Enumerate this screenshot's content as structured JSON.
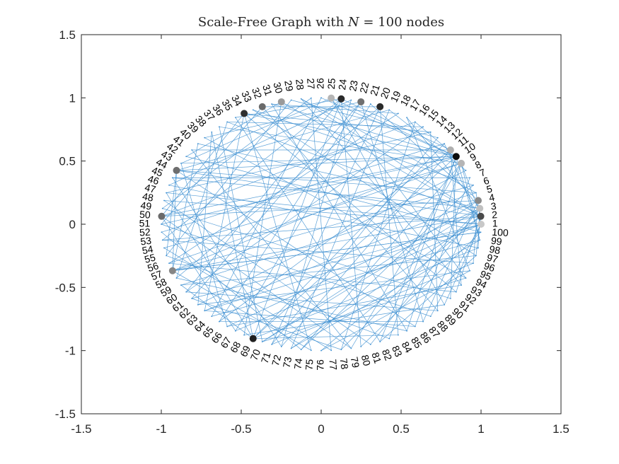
{
  "chart_data": {
    "type": "network-graph",
    "title": "Scale-Free Graph with N = 100 nodes",
    "title_parts": {
      "prefix": "Scale-Free Graph with ",
      "var": "N",
      "rest": " = 100 nodes"
    },
    "xlabel": "",
    "ylabel": "",
    "xlim": [
      -1.5,
      1.5
    ],
    "ylim": [
      -1.5,
      1.5
    ],
    "xticks": [
      -1.5,
      -1,
      -0.5,
      0,
      0.5,
      1,
      1.5
    ],
    "yticks": [
      -1.5,
      -1,
      -0.5,
      0,
      0.5,
      1,
      1.5
    ],
    "xtick_labels": [
      "-1.5",
      "-1",
      "-0.5",
      "0",
      "0.5",
      "1",
      "1.5"
    ],
    "ytick_labels": [
      "-1.5",
      "-1",
      "-0.5",
      "0",
      "0.5",
      "1",
      "1.5"
    ],
    "grid": false,
    "layout": "circle",
    "node_count": 100,
    "edge_color": "#3d8fd1",
    "node_labels": [
      "1",
      "2",
      "3",
      "4",
      "5",
      "6",
      "7",
      "8",
      "9",
      "10",
      "11",
      "12",
      "13",
      "14",
      "15",
      "16",
      "17",
      "18",
      "19",
      "20",
      "21",
      "22",
      "23",
      "24",
      "25",
      "26",
      "27",
      "28",
      "29",
      "30",
      "31",
      "32",
      "33",
      "34",
      "35",
      "36",
      "37",
      "38",
      "39",
      "40",
      "41",
      "42",
      "43",
      "44",
      "45",
      "46",
      "47",
      "48",
      "49",
      "50",
      "51",
      "52",
      "53",
      "54",
      "55",
      "56",
      "57",
      "58",
      "59",
      "60",
      "61",
      "62",
      "63",
      "64",
      "65",
      "66",
      "67",
      "68",
      "69",
      "70",
      "71",
      "72",
      "73",
      "74",
      "75",
      "76",
      "77",
      "78",
      "79",
      "80",
      "81",
      "82",
      "83",
      "84",
      "85",
      "86",
      "87",
      "88",
      "89",
      "90",
      "91",
      "92",
      "93",
      "94",
      "95",
      "96",
      "97",
      "98",
      "99",
      "100"
    ],
    "highlighted_nodes": [
      {
        "node": 1,
        "color": "#c8c8c8"
      },
      {
        "node": 2,
        "color": "#4a4a4a"
      },
      {
        "node": 3,
        "color": "#c0c0c0"
      },
      {
        "node": 4,
        "color": "#8a8a8a"
      },
      {
        "node": 9,
        "color": "#b5b5b5"
      },
      {
        "node": 10,
        "color": "#0d0d0d"
      },
      {
        "node": 11,
        "color": "#b0b0b0"
      },
      {
        "node": 20,
        "color": "#2a2a2a"
      },
      {
        "node": 22,
        "color": "#707070"
      },
      {
        "node": 24,
        "color": "#2a2a2a"
      },
      {
        "node": 25,
        "color": "#b5b5b5"
      },
      {
        "node": 30,
        "color": "#9a9a9a"
      },
      {
        "node": 32,
        "color": "#6a6a6a"
      },
      {
        "node": 34,
        "color": "#2f2f2f"
      },
      {
        "node": 44,
        "color": "#6e6e6e"
      },
      {
        "node": 50,
        "color": "#6a6a6a"
      },
      {
        "node": 57,
        "color": "#858585"
      },
      {
        "node": 69,
        "color": "#1f1f1f"
      }
    ],
    "edges": [
      [
        1,
        5
      ],
      [
        1,
        12
      ],
      [
        1,
        48
      ],
      [
        1,
        63
      ],
      [
        1,
        88
      ],
      [
        2,
        9
      ],
      [
        2,
        30
      ],
      [
        2,
        44
      ],
      [
        2,
        57
      ],
      [
        2,
        76
      ],
      [
        2,
        92
      ],
      [
        3,
        17
      ],
      [
        3,
        40
      ],
      [
        3,
        66
      ],
      [
        3,
        81
      ],
      [
        4,
        21
      ],
      [
        4,
        50
      ],
      [
        4,
        70
      ],
      [
        4,
        96
      ],
      [
        5,
        28
      ],
      [
        5,
        59
      ],
      [
        6,
        33
      ],
      [
        6,
        74
      ],
      [
        7,
        45
      ],
      [
        7,
        86
      ],
      [
        8,
        19
      ],
      [
        8,
        62
      ],
      [
        9,
        37
      ],
      [
        9,
        54
      ],
      [
        9,
        79
      ],
      [
        9,
        99
      ],
      [
        10,
        16
      ],
      [
        10,
        25
      ],
      [
        10,
        34
      ],
      [
        10,
        44
      ],
      [
        10,
        50
      ],
      [
        10,
        57
      ],
      [
        10,
        69
      ],
      [
        10,
        83
      ],
      [
        10,
        91
      ],
      [
        11,
        24
      ],
      [
        11,
        41
      ],
      [
        11,
        65
      ],
      [
        12,
        52
      ],
      [
        13,
        29
      ],
      [
        13,
        71
      ],
      [
        14,
        47
      ],
      [
        14,
        89
      ],
      [
        15,
        36
      ],
      [
        15,
        60
      ],
      [
        16,
        78
      ],
      [
        17,
        95
      ],
      [
        18,
        31
      ],
      [
        18,
        56
      ],
      [
        19,
        73
      ],
      [
        20,
        32
      ],
      [
        20,
        58
      ],
      [
        20,
        84
      ],
      [
        21,
        67
      ],
      [
        22,
        39
      ],
      [
        22,
        61
      ],
      [
        22,
        87
      ],
      [
        23,
        46
      ],
      [
        23,
        72
      ],
      [
        24,
        35
      ],
      [
        24,
        53
      ],
      [
        24,
        69
      ],
      [
        24,
        80
      ],
      [
        25,
        43
      ],
      [
        25,
        90
      ],
      [
        26,
        64
      ],
      [
        27,
        49
      ],
      [
        27,
        77
      ],
      [
        28,
        93
      ],
      [
        29,
        55
      ],
      [
        30,
        42
      ],
      [
        30,
        68
      ],
      [
        31,
        85
      ],
      [
        32,
        51
      ],
      [
        33,
        97
      ],
      [
        34,
        50
      ],
      [
        34,
        75
      ],
      [
        34,
        63
      ],
      [
        35,
        82
      ],
      [
        36,
        58
      ],
      [
        37,
        70
      ],
      [
        38,
        62
      ],
      [
        39,
        94
      ],
      [
        40,
        57
      ],
      [
        41,
        79
      ],
      [
        42,
        100
      ],
      [
        43,
        66
      ],
      [
        44,
        57
      ],
      [
        44,
        86
      ],
      [
        45,
        72
      ],
      [
        46,
        98
      ],
      [
        47,
        69
      ],
      [
        48,
        81
      ],
      [
        49,
        91
      ],
      [
        50,
        67
      ],
      [
        51,
        88
      ],
      [
        52,
        74
      ],
      [
        53,
        96
      ],
      [
        54,
        77
      ],
      [
        55,
        83
      ],
      [
        56,
        92
      ],
      [
        57,
        75
      ],
      [
        57,
        100
      ],
      [
        58,
        85
      ],
      [
        59,
        97
      ],
      [
        60,
        89
      ],
      [
        61,
        78
      ],
      [
        62,
        95
      ],
      [
        63,
        86
      ],
      [
        64,
        99
      ],
      [
        65,
        87
      ],
      [
        66,
        93
      ],
      [
        68,
        90
      ],
      [
        69,
        84
      ],
      [
        69,
        98
      ],
      [
        70,
        94
      ],
      [
        71,
        96
      ],
      [
        73,
        99
      ],
      [
        76,
        95
      ],
      [
        80,
        100
      ],
      [
        82,
        97
      ],
      [
        3,
        70
      ],
      [
        5,
        44
      ],
      [
        6,
        57
      ],
      [
        12,
        69
      ],
      [
        14,
        34
      ],
      [
        16,
        50
      ],
      [
        19,
        44
      ],
      [
        26,
        10
      ],
      [
        28,
        2
      ],
      [
        31,
        10
      ],
      [
        36,
        2
      ],
      [
        38,
        69
      ],
      [
        43,
        10
      ],
      [
        45,
        3
      ],
      [
        47,
        1
      ],
      [
        51,
        10
      ],
      [
        53,
        2
      ],
      [
        55,
        44
      ],
      [
        56,
        9
      ],
      [
        59,
        69
      ],
      [
        60,
        24
      ],
      [
        61,
        1
      ],
      [
        63,
        4
      ],
      [
        65,
        22
      ],
      [
        67,
        1
      ],
      [
        71,
        20
      ],
      [
        72,
        11
      ],
      [
        73,
        2
      ],
      [
        74,
        9
      ],
      [
        78,
        3
      ],
      [
        79,
        50
      ],
      [
        82,
        10
      ],
      [
        85,
        9
      ],
      [
        87,
        4
      ],
      [
        89,
        32
      ],
      [
        90,
        1
      ],
      [
        92,
        34
      ],
      [
        93,
        11
      ],
      [
        94,
        25
      ],
      [
        97,
        2
      ],
      [
        98,
        3
      ],
      [
        99,
        10
      ],
      [
        100,
        57
      ]
    ]
  }
}
